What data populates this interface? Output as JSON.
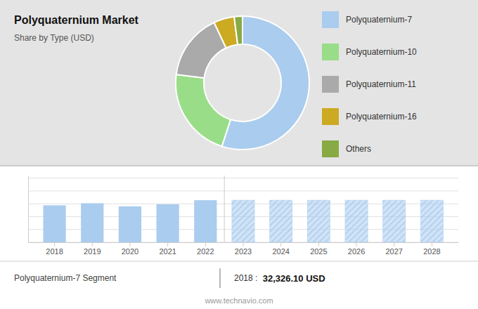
{
  "chart_data": [
    {
      "type": "pie",
      "title": "Polyquaternium Market",
      "subtitle": "Share by Type (USD)",
      "categories": [
        "Polyquaternium-7",
        "Polyquaternium-10",
        "Polyquaternium-11",
        "Polyquaternium-16",
        "Others"
      ],
      "values": [
        55,
        22,
        16,
        5,
        2
      ],
      "colors": [
        "#aaccee",
        "#99dd88",
        "#aaaaaa",
        "#ccaa22",
        "#88aa44"
      ],
      "legend": "right"
    },
    {
      "type": "bar",
      "categories": [
        "2018",
        "2019",
        "2020",
        "2021",
        "2022",
        "2023",
        "2024",
        "2025",
        "2026",
        "2027",
        "2028"
      ],
      "series": [
        {
          "color": "#aaccee",
          "line_style": "solid",
          "values": [
            0.72,
            0.76,
            0.7,
            0.74,
            0.82,
            null,
            null,
            null,
            null,
            null,
            null
          ]
        },
        {
          "color": "#aaccee",
          "line_style": "hatched",
          "values": [
            null,
            null,
            null,
            null,
            null,
            0.82,
            0.82,
            0.82,
            0.82,
            0.82,
            0.82
          ]
        }
      ],
      "ylim": [
        0,
        1.3
      ],
      "yticks": [
        0,
        0.25,
        0.5,
        0.75,
        1,
        1.25
      ],
      "grid": true,
      "tick_labels": "x",
      "annotations": [
        "Polyquaternium-7 Segment",
        "2018 : ",
        "32,326.10 USD",
        "www.technavio.com"
      ]
    }
  ]
}
